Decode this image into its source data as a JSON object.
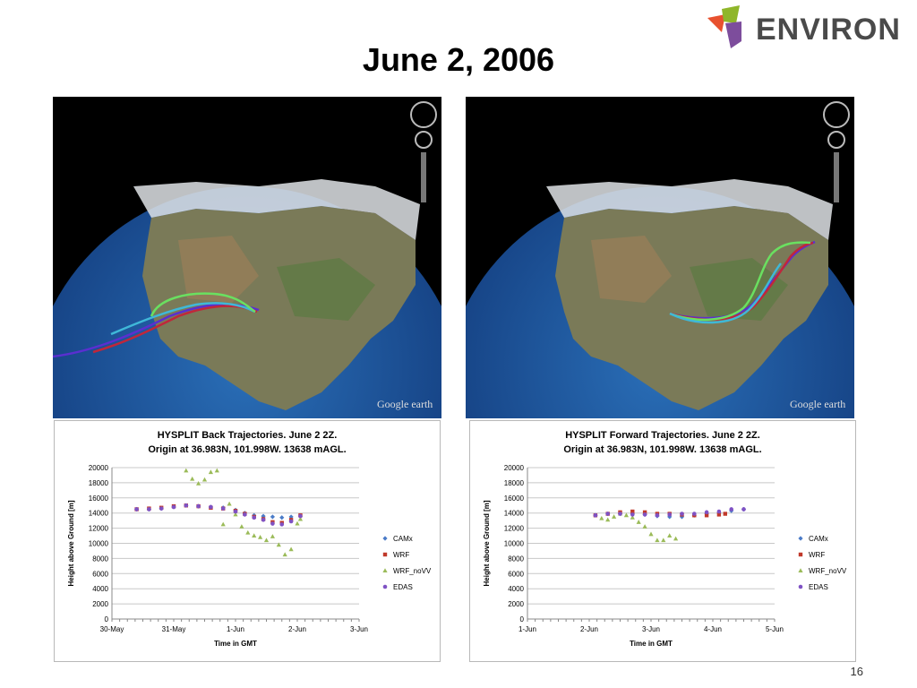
{
  "slide": {
    "title": "June 2, 2006",
    "page_number": "16"
  },
  "logo": {
    "text": "ENVIRON",
    "colors": [
      "#e8512f",
      "#8fb62a",
      "#7d4d9c"
    ]
  },
  "earth_images": [
    {
      "attribution": "Google earth",
      "trajectory_type": "back",
      "line_colors": [
        "#5a2fd0",
        "#c0273b",
        "#6ae060",
        "#3fb8d8"
      ]
    },
    {
      "attribution": "Google earth",
      "trajectory_type": "forward",
      "line_colors": [
        "#5a2fd0",
        "#c0273b",
        "#6ae060",
        "#3fb8d8"
      ]
    }
  ],
  "chart_data": [
    {
      "type": "scatter",
      "title_line1": "HYSPLIT Back Trajectories.  June 2 2Z.",
      "title_line2": "Origin at 36.983N, 101.998W.  13638 mAGL.",
      "xlabel": "Time in GMT",
      "ylabel": "Height above Ground [m]",
      "xlim": [
        0,
        4
      ],
      "ylim": [
        0,
        20000
      ],
      "xticks": [
        "30-May",
        "31-May",
        "1-Jun",
        "2-Jun",
        "3-Jun"
      ],
      "yticks": [
        "0",
        "2000",
        "4000",
        "6000",
        "8000",
        "10000",
        "12000",
        "14000",
        "16000",
        "18000",
        "20000"
      ],
      "grid": true,
      "legend_position": "right",
      "series": [
        {
          "name": "CAMx",
          "color": "#4a7bc8",
          "marker": "diamond",
          "points": [
            [
              0.4,
              14500
            ],
            [
              0.6,
              14500
            ],
            [
              0.8,
              14600
            ],
            [
              1.0,
              14800
            ],
            [
              1.2,
              15000
            ],
            [
              1.4,
              14900
            ],
            [
              1.6,
              14800
            ],
            [
              1.8,
              14700
            ],
            [
              2.0,
              14400
            ],
            [
              2.15,
              14000
            ],
            [
              2.3,
              13700
            ],
            [
              2.45,
              13600
            ],
            [
              2.6,
              13500
            ],
            [
              2.75,
              13400
            ],
            [
              2.9,
              13500
            ],
            [
              3.05,
              13600
            ]
          ]
        },
        {
          "name": "WRF",
          "color": "#c0392b",
          "marker": "square",
          "points": [
            [
              0.4,
              14500
            ],
            [
              0.6,
              14600
            ],
            [
              0.8,
              14700
            ],
            [
              1.0,
              14900
            ],
            [
              1.2,
              15000
            ],
            [
              1.4,
              14900
            ],
            [
              1.6,
              14700
            ],
            [
              1.8,
              14600
            ],
            [
              2.0,
              14300
            ],
            [
              2.15,
              13900
            ],
            [
              2.3,
              13500
            ],
            [
              2.45,
              13200
            ],
            [
              2.6,
              12800
            ],
            [
              2.75,
              12700
            ],
            [
              2.9,
              13100
            ],
            [
              3.05,
              13700
            ]
          ]
        },
        {
          "name": "WRF_noVV",
          "color": "#9bbb59",
          "marker": "triangle",
          "points": [
            [
              1.2,
              19600
            ],
            [
              1.3,
              18500
            ],
            [
              1.4,
              17900
            ],
            [
              1.5,
              18400
            ],
            [
              1.6,
              19400
            ],
            [
              1.7,
              19600
            ],
            [
              1.8,
              12500
            ],
            [
              1.9,
              15200
            ],
            [
              2.0,
              13800
            ],
            [
              2.1,
              12200
            ],
            [
              2.2,
              11400
            ],
            [
              2.3,
              11000
            ],
            [
              2.4,
              10800
            ],
            [
              2.5,
              10400
            ],
            [
              2.6,
              10900
            ],
            [
              2.7,
              9800
            ],
            [
              2.8,
              8500
            ],
            [
              2.9,
              9200
            ],
            [
              3.0,
              12600
            ],
            [
              3.05,
              13200
            ]
          ]
        },
        {
          "name": "EDAS",
          "color": "#7f52c4",
          "marker": "circle",
          "points": [
            [
              0.4,
              14500
            ],
            [
              0.6,
              14500
            ],
            [
              0.8,
              14600
            ],
            [
              1.0,
              14800
            ],
            [
              1.2,
              15000
            ],
            [
              1.4,
              14900
            ],
            [
              1.6,
              14800
            ],
            [
              1.8,
              14600
            ],
            [
              2.0,
              14200
            ],
            [
              2.15,
              13800
            ],
            [
              2.3,
              13400
            ],
            [
              2.45,
              13100
            ],
            [
              2.6,
              12600
            ],
            [
              2.75,
              12500
            ],
            [
              2.9,
              12900
            ],
            [
              3.05,
              13600
            ]
          ]
        }
      ]
    },
    {
      "type": "scatter",
      "title_line1": "HYSPLIT Forward Trajectories.  June 2 2Z.",
      "title_line2": "Origin at 36.983N, 101.998W.  13638 mAGL.",
      "xlabel": "Time in GMT",
      "ylabel": "Height above Ground [m]",
      "xlim": [
        0,
        4
      ],
      "ylim": [
        0,
        20000
      ],
      "xticks": [
        "1-Jun",
        "2-Jun",
        "3-Jun",
        "4-Jun",
        "5-Jun"
      ],
      "yticks": [
        "0",
        "2000",
        "4000",
        "6000",
        "8000",
        "10000",
        "12000",
        "14000",
        "16000",
        "18000",
        "20000"
      ],
      "grid": true,
      "legend_position": "right",
      "series": [
        {
          "name": "CAMx",
          "color": "#4a7bc8",
          "marker": "diamond",
          "points": [
            [
              1.1,
              13700
            ],
            [
              1.3,
              13900
            ],
            [
              1.5,
              13900
            ],
            [
              1.7,
              13900
            ],
            [
              1.9,
              13800
            ],
            [
              2.1,
              13600
            ],
            [
              2.3,
              13500
            ],
            [
              2.5,
              13500
            ],
            [
              2.7,
              13700
            ],
            [
              2.9,
              13900
            ],
            [
              3.1,
              14000
            ],
            [
              3.3,
              14300
            ],
            [
              3.5,
              14500
            ]
          ]
        },
        {
          "name": "WRF",
          "color": "#c0392b",
          "marker": "square",
          "points": [
            [
              1.1,
              13700
            ],
            [
              1.3,
              13900
            ],
            [
              1.5,
              14100
            ],
            [
              1.7,
              14200
            ],
            [
              1.9,
              14100
            ],
            [
              2.1,
              13900
            ],
            [
              2.3,
              13900
            ],
            [
              2.5,
              13800
            ],
            [
              2.7,
              13700
            ],
            [
              2.9,
              13700
            ],
            [
              3.1,
              13800
            ],
            [
              3.2,
              13900
            ]
          ]
        },
        {
          "name": "WRF_noVV",
          "color": "#9bbb59",
          "marker": "triangle",
          "points": [
            [
              1.2,
              13300
            ],
            [
              1.3,
              13100
            ],
            [
              1.4,
              13500
            ],
            [
              1.5,
              13900
            ],
            [
              1.6,
              13700
            ],
            [
              1.7,
              13400
            ],
            [
              1.8,
              12800
            ],
            [
              1.9,
              12200
            ],
            [
              2.0,
              11200
            ],
            [
              2.1,
              10400
            ],
            [
              2.2,
              10400
            ],
            [
              2.3,
              11000
            ],
            [
              2.4,
              10600
            ]
          ]
        },
        {
          "name": "EDAS",
          "color": "#7f52c4",
          "marker": "circle",
          "points": [
            [
              1.1,
              13700
            ],
            [
              1.3,
              13900
            ],
            [
              1.5,
              13900
            ],
            [
              1.7,
              13800
            ],
            [
              1.9,
              13800
            ],
            [
              2.1,
              13700
            ],
            [
              2.3,
              13800
            ],
            [
              2.5,
              13900
            ],
            [
              2.7,
              13900
            ],
            [
              2.9,
              14100
            ],
            [
              3.1,
              14200
            ],
            [
              3.3,
              14500
            ],
            [
              3.5,
              14500
            ]
          ]
        }
      ]
    }
  ]
}
